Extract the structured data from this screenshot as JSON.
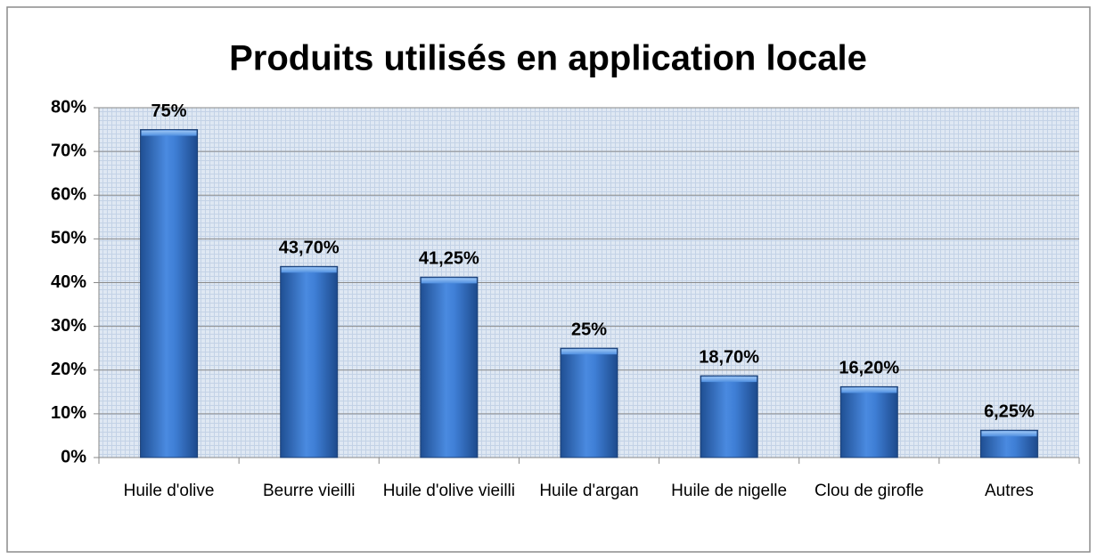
{
  "chart_data": {
    "type": "bar",
    "title": "Produits utilisés en application locale",
    "categories": [
      "Huile d'olive",
      "Beurre vieilli",
      "Huile d'olive vieilli",
      "Huile d'argan",
      "Huile de nigelle",
      "Clou de girofle",
      "Autres"
    ],
    "values": [
      75,
      43.7,
      41.25,
      25,
      18.7,
      16.2,
      6.25
    ],
    "value_labels": [
      "75%",
      "43,70%",
      "41,25%",
      "25%",
      "18,70%",
      "16,20%",
      "6,25%"
    ],
    "color": "#3a78c8",
    "ylim": [
      0,
      80
    ],
    "yticks": [
      {
        "value": 0,
        "label": "0%"
      },
      {
        "value": 10,
        "label": "10%"
      },
      {
        "value": 20,
        "label": "20%"
      },
      {
        "value": 30,
        "label": "30%"
      },
      {
        "value": 40,
        "label": "40%"
      },
      {
        "value": 50,
        "label": "50%"
      },
      {
        "value": 60,
        "label": "60%"
      },
      {
        "value": 70,
        "label": "70%"
      },
      {
        "value": 80,
        "label": "80%"
      }
    ],
    "grid": true
  }
}
